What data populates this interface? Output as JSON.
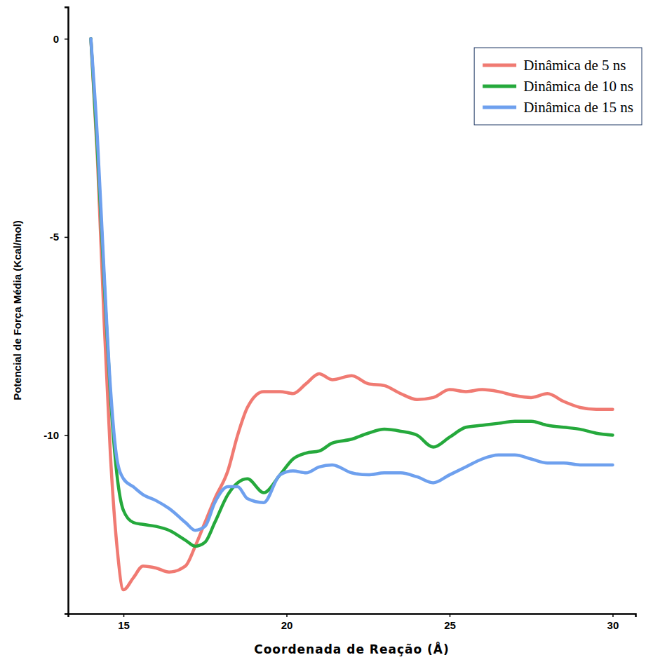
{
  "chart_data": {
    "type": "line",
    "x_label": "Coordenada de Reação (Å)",
    "y_label": "Potencial de Força Média (Kcal/mol)",
    "x": [
      14,
      14.2,
      14.4,
      14.6,
      14.8,
      15,
      15.3,
      15.6,
      16,
      16.4,
      16.9,
      17.2,
      17.5,
      17.8,
      18.2,
      18.5,
      18.8,
      19.3,
      19.8,
      20.2,
      20.6,
      21,
      21.4,
      22,
      22.5,
      23,
      23.5,
      24,
      24.5,
      25,
      25.5,
      26,
      26.5,
      27,
      27.5,
      28,
      28.5,
      29,
      29.5,
      30
    ],
    "series": [
      {
        "name": "Dinâmica de 5 ns",
        "color": "#f07a72",
        "values": [
          0,
          -3.0,
          -7.0,
          -10.5,
          -12.8,
          -13.9,
          -13.6,
          -13.3,
          -13.35,
          -13.45,
          -13.3,
          -12.8,
          -12.2,
          -11.6,
          -10.9,
          -10.0,
          -9.3,
          -8.9,
          -8.9,
          -8.95,
          -8.7,
          -8.45,
          -8.6,
          -8.5,
          -8.7,
          -8.75,
          -8.95,
          -9.1,
          -9.05,
          -8.85,
          -8.9,
          -8.85,
          -8.9,
          -9.0,
          -9.05,
          -8.95,
          -9.15,
          -9.3,
          -9.35,
          -9.35
        ]
      },
      {
        "name": "Dinâmica de 10 ns",
        "color": "#25a93c",
        "values": [
          0,
          -2.8,
          -6.0,
          -9.0,
          -11.0,
          -11.9,
          -12.2,
          -12.25,
          -12.3,
          -12.4,
          -12.65,
          -12.8,
          -12.7,
          -12.2,
          -11.5,
          -11.2,
          -11.1,
          -11.45,
          -11.0,
          -10.6,
          -10.45,
          -10.4,
          -10.2,
          -10.1,
          -9.95,
          -9.85,
          -9.9,
          -10.0,
          -10.3,
          -10.05,
          -9.8,
          -9.75,
          -9.7,
          -9.65,
          -9.65,
          -9.75,
          -9.8,
          -9.85,
          -9.95,
          -10.0
        ]
      },
      {
        "name": "Dinâmica de 15 ns",
        "color": "#6ea0ee",
        "values": [
          0,
          -2.5,
          -5.8,
          -8.8,
          -10.6,
          -11.1,
          -11.3,
          -11.5,
          -11.65,
          -11.85,
          -12.2,
          -12.4,
          -12.3,
          -11.7,
          -11.3,
          -11.3,
          -11.6,
          -11.7,
          -11.0,
          -10.9,
          -10.95,
          -10.8,
          -10.75,
          -10.95,
          -11.0,
          -10.95,
          -10.95,
          -11.05,
          -11.2,
          -11.0,
          -10.8,
          -10.6,
          -10.5,
          -10.5,
          -10.6,
          -10.7,
          -10.7,
          -10.75,
          -10.75,
          -10.75
        ]
      }
    ],
    "xlim": [
      13.3,
      30.7
    ],
    "ylim": [
      -14.5,
      0.8
    ],
    "xticks": [
      15,
      20,
      25,
      30
    ],
    "yticks": [
      0,
      -5,
      -10
    ],
    "legend": "upper right",
    "grid": false
  }
}
